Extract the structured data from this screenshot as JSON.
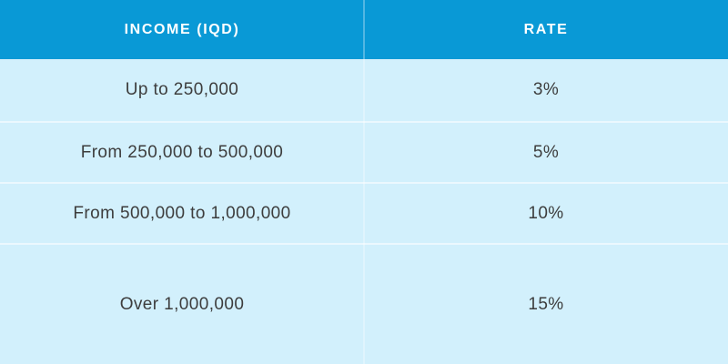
{
  "chart_data": {
    "type": "table",
    "title": "Income tax rates table",
    "columns": [
      "INCOME (IQD)",
      "RATE"
    ],
    "rows": [
      [
        "Up to 250,000",
        "3%"
      ],
      [
        "From 250,000 to 500,000",
        "5%"
      ],
      [
        "From 500,000 to 1,000,000",
        "10%"
      ],
      [
        "Over 1,000,000",
        "15%"
      ]
    ]
  },
  "colors": {
    "header_bg": "#0999d6",
    "row_bg": "#d2f0fc",
    "header_text": "#ffffff",
    "body_text": "#3d3d3d"
  }
}
